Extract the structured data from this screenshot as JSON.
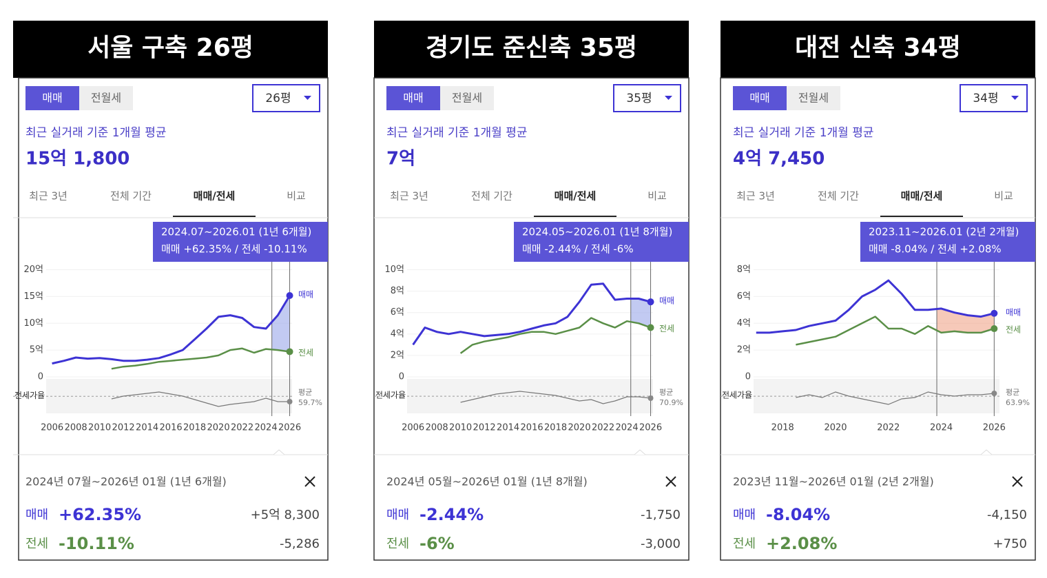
{
  "panels": [
    {
      "heading": "서울 구축 26평",
      "trade_tabs": [
        "매매",
        "전월세"
      ],
      "size": "26평",
      "summary_label": "최근 실거래 기준 1개월 평균",
      "summary_value": "15억 1,800",
      "period_tabs": [
        "최근 3년",
        "전체 기간",
        "매매/전세",
        "비교"
      ],
      "selected_tab": 2,
      "tooltip": {
        "range": "2024.07~2026.01 (1년 6개월)",
        "text": "매매 +62.35%  /  전세 -10.11%"
      },
      "detail": {
        "period": "2024년 07월~2026년 01월 (1년 6개월)",
        "rows": [
          {
            "label": "매매",
            "pct": "+62.35%",
            "diff": "+5억 8,300"
          },
          {
            "label": "전세",
            "pct": "-10.11%",
            "diff": "-5,286"
          }
        ]
      }
    },
    {
      "heading": "경기도 준신축 35평",
      "trade_tabs": [
        "매매",
        "전월세"
      ],
      "size": "35평",
      "summary_label": "최근 실거래 기준 1개월 평균",
      "summary_value": "7억",
      "period_tabs": [
        "최근 3년",
        "전체 기간",
        "매매/전세",
        "비교"
      ],
      "selected_tab": 2,
      "tooltip": {
        "range": "2024.05~2026.01 (1년 8개월)",
        "text": "매매 -2.44%  /  전세 -6%"
      },
      "detail": {
        "period": "2024년 05월~2026년 01월 (1년 8개월)",
        "rows": [
          {
            "label": "매매",
            "pct": "-2.44%",
            "diff": "-1,750"
          },
          {
            "label": "전세",
            "pct": "-6%",
            "diff": "-3,000"
          }
        ]
      }
    },
    {
      "heading": "대전 신축 34평",
      "trade_tabs": [
        "매매",
        "전월세"
      ],
      "size": "34평",
      "summary_label": "최근 실거래 기준 1개월 평균",
      "summary_value": "4억 7,450",
      "period_tabs": [
        "최근 3년",
        "전체 기간",
        "매매/전세",
        "비교"
      ],
      "selected_tab": 2,
      "tooltip": {
        "range": "2023.11~2026.01 (2년 2개월)",
        "text": "매매 -8.04%  /  전세 +2.08%"
      },
      "detail": {
        "period": "2023년 11월~2026년 01월 (2년 2개월)",
        "rows": [
          {
            "label": "매매",
            "pct": "-8.04%",
            "diff": "-4,150"
          },
          {
            "label": "전세",
            "pct": "+2.08%",
            "diff": "+750"
          }
        ]
      }
    }
  ],
  "chart_data": [
    {
      "type": "line",
      "x": [
        2006,
        2007,
        2008,
        2009,
        2010,
        2011,
        2012,
        2013,
        2014,
        2015,
        2016,
        2017,
        2018,
        2019,
        2020,
        2021,
        2022,
        2023,
        2024,
        2025,
        2026
      ],
      "xlim": [
        2005.5,
        2026.2
      ],
      "xticks": [
        2006,
        2008,
        2010,
        2012,
        2014,
        2016,
        2018,
        2020,
        2022,
        2024,
        2026
      ],
      "ylim": [
        0,
        22
      ],
      "yticks": [
        0,
        {
          "value": 5,
          "label": "5억"
        },
        {
          "value": 10,
          "label": "10억"
        },
        {
          "value": 15,
          "label": "15억"
        },
        {
          "value": 20,
          "label": "20억"
        }
      ],
      "series": [
        {
          "name": "매매",
          "color": "#3d33d4",
          "values": [
            2.5,
            3.0,
            3.6,
            3.4,
            3.5,
            3.3,
            3.0,
            3.0,
            3.2,
            3.5,
            4.2,
            5.0,
            7.0,
            9.0,
            11.2,
            11.5,
            11.0,
            9.3,
            9.0,
            11.5,
            15.18
          ]
        },
        {
          "name": "전세",
          "color": "#5a8f47",
          "values": [
            null,
            null,
            null,
            null,
            null,
            1.5,
            1.9,
            2.1,
            2.4,
            2.8,
            3.0,
            3.2,
            3.4,
            3.6,
            4.0,
            5.0,
            5.3,
            4.5,
            5.2,
            5.0,
            4.7
          ]
        }
      ],
      "ratio": {
        "name": "전세가율",
        "avg_name": "평균",
        "avg": 59.7,
        "avg_value_label": "59.7%",
        "lim": [
          35,
          85
        ],
        "color": "#777",
        "values": [
          null,
          null,
          null,
          null,
          null,
          56,
          60,
          62,
          64,
          66,
          63,
          60,
          55,
          50,
          45,
          48,
          50,
          52,
          57,
          52,
          52
        ]
      },
      "range": [
        2024.5,
        2026
      ],
      "range_color": "#9aa6ea"
    },
    {
      "type": "line",
      "x": [
        2006,
        2007,
        2008,
        2009,
        2010,
        2011,
        2012,
        2013,
        2014,
        2015,
        2016,
        2017,
        2018,
        2019,
        2020,
        2021,
        2022,
        2023,
        2024,
        2025,
        2026
      ],
      "xlim": [
        2005.5,
        2026.2
      ],
      "xticks": [
        2006,
        2008,
        2010,
        2012,
        2014,
        2016,
        2018,
        2020,
        2022,
        2024,
        2026
      ],
      "ylim": [
        0,
        11
      ],
      "yticks": [
        0,
        {
          "value": 2,
          "label": "2억"
        },
        {
          "value": 4,
          "label": "4억"
        },
        {
          "value": 6,
          "label": "6억"
        },
        {
          "value": 8,
          "label": "8억"
        },
        {
          "value": 10,
          "label": "10억"
        }
      ],
      "series": [
        {
          "name": "매매",
          "color": "#3d33d4",
          "values": [
            3.0,
            4.6,
            4.2,
            4.0,
            4.2,
            4.0,
            3.8,
            3.9,
            4.0,
            4.2,
            4.5,
            4.8,
            5.0,
            5.6,
            7.0,
            8.6,
            8.7,
            7.2,
            7.3,
            7.3,
            7.0
          ]
        },
        {
          "name": "전세",
          "color": "#5a8f47",
          "values": [
            null,
            null,
            null,
            null,
            2.2,
            3.0,
            3.3,
            3.5,
            3.7,
            4.0,
            4.2,
            4.2,
            4.0,
            4.3,
            4.6,
            5.5,
            5.0,
            4.6,
            5.2,
            5.0,
            4.6
          ]
        }
      ],
      "ratio": {
        "name": "전세가율",
        "avg_name": "평균",
        "avg": 70.9,
        "avg_value_label": "70.9%",
        "lim": [
          46,
          96
        ],
        "color": "#777",
        "values": [
          null,
          null,
          null,
          null,
          62,
          66,
          70,
          74,
          76,
          78,
          76,
          74,
          72,
          68,
          64,
          66,
          60,
          64,
          70,
          70,
          68
        ]
      },
      "range": [
        2024.33,
        2026
      ],
      "range_color": "#9aa6ea"
    },
    {
      "type": "line",
      "x": [
        2017,
        2017.5,
        2018,
        2018.5,
        2019,
        2019.5,
        2020,
        2020.5,
        2021,
        2021.5,
        2022,
        2022.5,
        2023,
        2023.5,
        2024,
        2024.5,
        2025,
        2025.5,
        2026
      ],
      "xlim": [
        2016.9,
        2026.2
      ],
      "xticks": [
        2018,
        2020,
        2022,
        2024,
        2026
      ],
      "ylim": [
        0,
        8.8
      ],
      "yticks": [
        0,
        {
          "value": 2,
          "label": "2억"
        },
        {
          "value": 4,
          "label": "4억"
        },
        {
          "value": 6,
          "label": "6억"
        },
        {
          "value": 8,
          "label": "8억"
        }
      ],
      "series": [
        {
          "name": "매매",
          "color": "#3d33d4",
          "values": [
            3.3,
            3.3,
            3.4,
            3.5,
            3.8,
            4.0,
            4.2,
            5.0,
            6.0,
            6.5,
            7.2,
            6.2,
            5.0,
            5.0,
            5.1,
            4.8,
            4.6,
            4.5,
            4.745
          ]
        },
        {
          "name": "전세",
          "color": "#5a8f47",
          "values": [
            null,
            null,
            null,
            2.4,
            2.6,
            2.8,
            3.0,
            3.5,
            4.0,
            4.5,
            3.6,
            3.6,
            3.2,
            3.8,
            3.3,
            3.4,
            3.3,
            3.3,
            3.6
          ]
        }
      ],
      "ratio": {
        "name": "전세가율",
        "avg_name": "평균",
        "avg": 63.9,
        "avg_value_label": "63.9%",
        "lim": [
          39,
          89
        ],
        "color": "#777",
        "values": [
          null,
          null,
          null,
          62,
          66,
          62,
          70,
          64,
          60,
          56,
          52,
          60,
          62,
          70,
          66,
          64,
          66,
          66,
          68
        ]
      },
      "range": [
        2023.83,
        2026
      ],
      "range_color": "#f0a58a"
    }
  ]
}
